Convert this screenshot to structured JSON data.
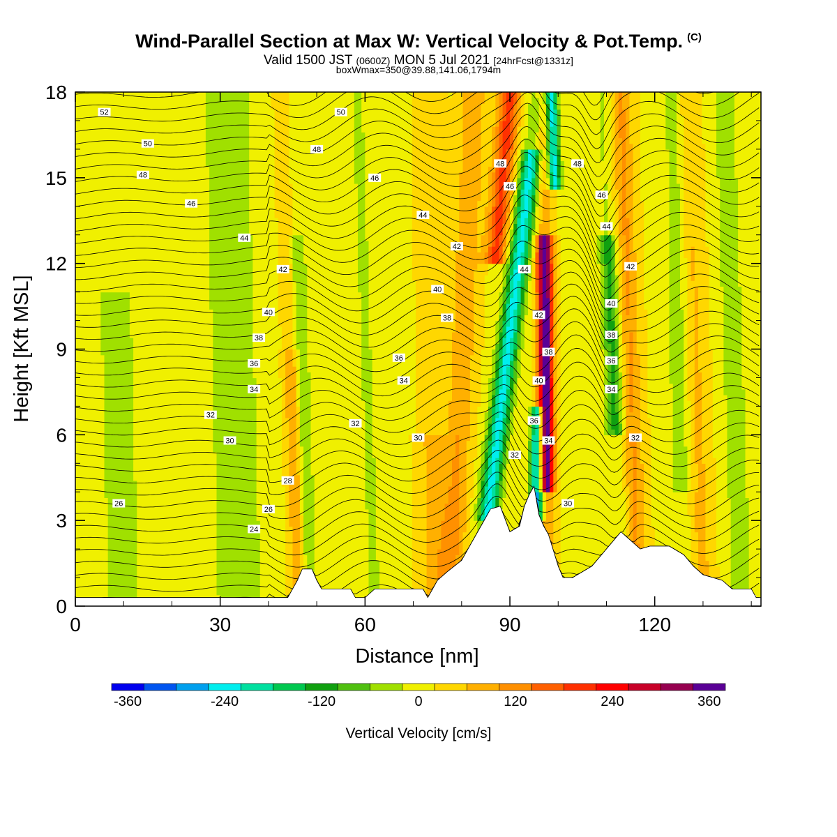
{
  "header": {
    "title": "Wind-Parallel Section at Max W: Vertical Velocity & Pot.Temp.",
    "copyright": "(C)",
    "valid_prefix": "Valid 1500 JST",
    "valid_utc": "(0600Z)",
    "valid_date": "MON 5 Jul 2021",
    "forecast": "[24hrFcst@1331z]",
    "box_info": "boxWmax=350@39.88,141.06,1794m"
  },
  "chart_data": {
    "type": "heatmap",
    "title": "Wind-Parallel Section at Max W: Vertical Velocity & Pot.Temp.",
    "xlabel": "Distance [nm]",
    "ylabel": "Height [Kft MSL]",
    "xlim": [
      0,
      142
    ],
    "ylim": [
      0,
      18
    ],
    "x_ticks": [
      0,
      30,
      60,
      90,
      120
    ],
    "y_ticks": [
      0,
      3,
      6,
      9,
      12,
      15,
      18
    ],
    "colorbar": {
      "label": "Vertical Velocity [cm/s]",
      "ticks": [
        -360,
        -240,
        -120,
        0,
        120,
        240,
        360
      ],
      "range": [
        -380,
        380
      ],
      "bin_width": 40,
      "colors": [
        "#0000ee",
        "#0055f0",
        "#00a0ee",
        "#00eeee",
        "#00e0a0",
        "#00c850",
        "#10a010",
        "#50c010",
        "#a0e000",
        "#f0f000",
        "#ffd700",
        "#ffb000",
        "#ff9000",
        "#ff6000",
        "#ff3000",
        "#ff0000",
        "#c80028",
        "#960050",
        "#5a0096"
      ]
    },
    "terrain_kft": [
      [
        0,
        0.3
      ],
      [
        44,
        0.3
      ],
      [
        45,
        0.6
      ],
      [
        46,
        0.9
      ],
      [
        47,
        1.3
      ],
      [
        49,
        1.3
      ],
      [
        50,
        0.9
      ],
      [
        51,
        0.6
      ],
      [
        57,
        0.6
      ],
      [
        58,
        0.3
      ],
      [
        60,
        0.3
      ],
      [
        62,
        0.6
      ],
      [
        72,
        0.6
      ],
      [
        73,
        0.3
      ],
      [
        74,
        0.6
      ],
      [
        75,
        0.9
      ],
      [
        77,
        1.2
      ],
      [
        80,
        1.6
      ],
      [
        82,
        2.2
      ],
      [
        84,
        2.8
      ],
      [
        86,
        3.4
      ],
      [
        88,
        3.5
      ],
      [
        90,
        2.6
      ],
      [
        92,
        2.8
      ],
      [
        93,
        3.5
      ],
      [
        94,
        3.9
      ],
      [
        95,
        4.2
      ],
      [
        96,
        3.2
      ],
      [
        97,
        2.8
      ],
      [
        98,
        2.5
      ],
      [
        100,
        1.4
      ],
      [
        101,
        1.0
      ],
      [
        103,
        1.0
      ],
      [
        107,
        1.4
      ],
      [
        111,
        2.2
      ],
      [
        113,
        2.6
      ],
      [
        115,
        2.3
      ],
      [
        117,
        2.0
      ],
      [
        119,
        2.1
      ],
      [
        123,
        2.1
      ],
      [
        126,
        1.8
      ],
      [
        128,
        1.4
      ],
      [
        130,
        1.1
      ],
      [
        134,
        0.9
      ],
      [
        136,
        0.6
      ],
      [
        140,
        0.6
      ],
      [
        141,
        0.3
      ],
      [
        142,
        0.3
      ]
    ],
    "theta_labels": [
      {
        "x": 6,
        "y": 17.3,
        "text": "52"
      },
      {
        "x": 15,
        "y": 16.2,
        "text": "50"
      },
      {
        "x": 55,
        "y": 17.3,
        "text": "50"
      },
      {
        "x": 14,
        "y": 15.1,
        "text": "48"
      },
      {
        "x": 50,
        "y": 16.0,
        "text": "48"
      },
      {
        "x": 88,
        "y": 15.5,
        "text": "48"
      },
      {
        "x": 104,
        "y": 15.5,
        "text": "48"
      },
      {
        "x": 24,
        "y": 14.1,
        "text": "46"
      },
      {
        "x": 62,
        "y": 15.0,
        "text": "46"
      },
      {
        "x": 90,
        "y": 14.7,
        "text": "46"
      },
      {
        "x": 109,
        "y": 14.4,
        "text": "46"
      },
      {
        "x": 35,
        "y": 12.9,
        "text": "44"
      },
      {
        "x": 72,
        "y": 13.7,
        "text": "44"
      },
      {
        "x": 93,
        "y": 11.8,
        "text": "44"
      },
      {
        "x": 110,
        "y": 13.3,
        "text": "44"
      },
      {
        "x": 43,
        "y": 11.8,
        "text": "42"
      },
      {
        "x": 79,
        "y": 12.6,
        "text": "42"
      },
      {
        "x": 96,
        "y": 10.2,
        "text": "42"
      },
      {
        "x": 115,
        "y": 11.9,
        "text": "42"
      },
      {
        "x": 40,
        "y": 10.3,
        "text": "40"
      },
      {
        "x": 75,
        "y": 11.1,
        "text": "40"
      },
      {
        "x": 96,
        "y": 7.9,
        "text": "40"
      },
      {
        "x": 111,
        "y": 10.6,
        "text": "40"
      },
      {
        "x": 38,
        "y": 9.4,
        "text": "38"
      },
      {
        "x": 77,
        "y": 10.1,
        "text": "38"
      },
      {
        "x": 98,
        "y": 8.9,
        "text": "38"
      },
      {
        "x": 111,
        "y": 9.5,
        "text": "38"
      },
      {
        "x": 37,
        "y": 8.5,
        "text": "36"
      },
      {
        "x": 67,
        "y": 8.7,
        "text": "36"
      },
      {
        "x": 95,
        "y": 6.5,
        "text": "36"
      },
      {
        "x": 111,
        "y": 8.6,
        "text": "36"
      },
      {
        "x": 37,
        "y": 7.6,
        "text": "34"
      },
      {
        "x": 68,
        "y": 7.9,
        "text": "34"
      },
      {
        "x": 98,
        "y": 5.8,
        "text": "34"
      },
      {
        "x": 111,
        "y": 7.6,
        "text": "34"
      },
      {
        "x": 28,
        "y": 6.7,
        "text": "32"
      },
      {
        "x": 58,
        "y": 6.4,
        "text": "32"
      },
      {
        "x": 91,
        "y": 5.3,
        "text": "32"
      },
      {
        "x": 116,
        "y": 5.9,
        "text": "32"
      },
      {
        "x": 32,
        "y": 5.8,
        "text": "30"
      },
      {
        "x": 71,
        "y": 5.9,
        "text": "30"
      },
      {
        "x": 102,
        "y": 3.6,
        "text": "30"
      },
      {
        "x": 44,
        "y": 4.4,
        "text": "28"
      },
      {
        "x": 9,
        "y": 3.6,
        "text": "26"
      },
      {
        "x": 40,
        "y": 3.4,
        "text": "26"
      },
      {
        "x": 37,
        "y": 2.7,
        "text": "24"
      }
    ]
  }
}
